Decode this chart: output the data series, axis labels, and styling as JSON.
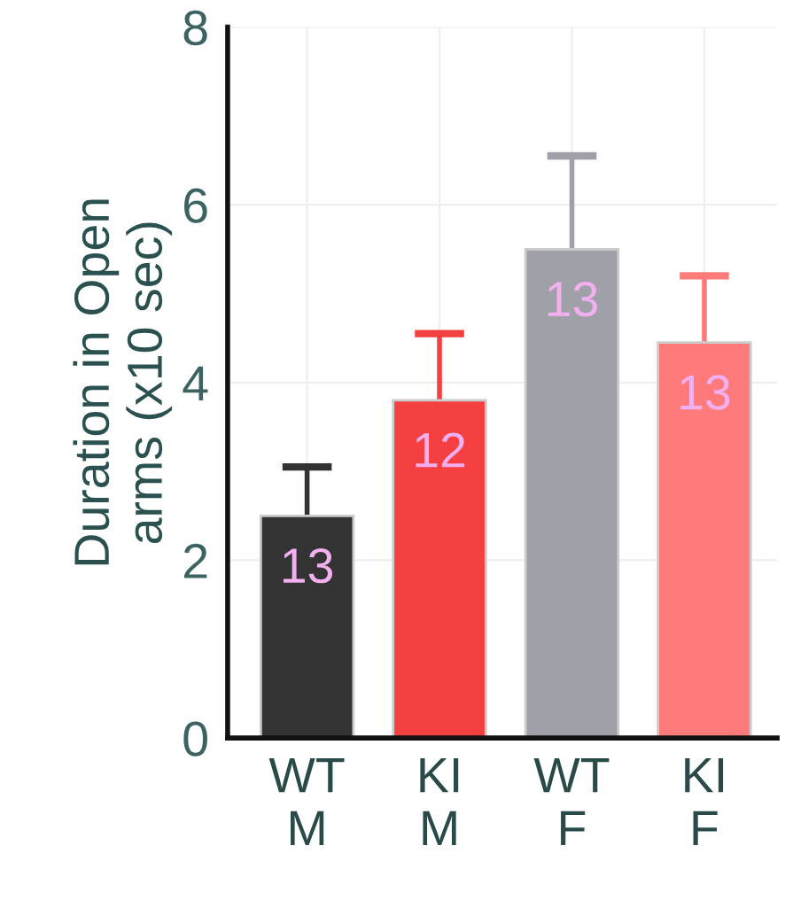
{
  "chart_data": {
    "type": "bar",
    "ylabel": "Duration in Open\narms (x10 sec)",
    "categories": [
      "WT\nM",
      "KI\nM",
      "WT\nF",
      "KI\nF"
    ],
    "values": [
      2.5,
      3.8,
      5.5,
      4.45
    ],
    "errors": [
      0.55,
      0.75,
      1.05,
      0.75
    ],
    "colors": [
      "#333333",
      "#f44040",
      "#a0a0a8",
      "#ff7b7b"
    ],
    "ylim": [
      0,
      8
    ],
    "yticks": [
      0,
      2,
      4,
      6,
      8
    ],
    "grid": true,
    "annotations": [
      "13",
      "12",
      "13",
      "13"
    ]
  }
}
